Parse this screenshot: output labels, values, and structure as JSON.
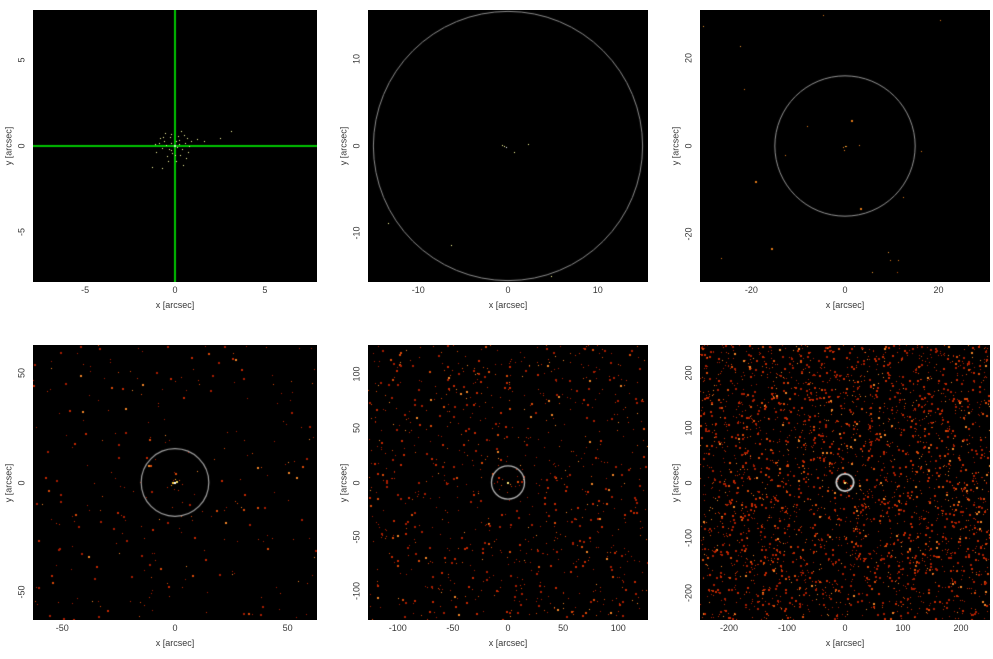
{
  "figure": {
    "description_colors": {
      "plot_background": "#000000",
      "page_background": "#ffffff",
      "tick_text": "#383838",
      "crosshair_green": "#00c400",
      "circle_gray": "#a8a8a8",
      "noise_red": "#b22000",
      "source_yellow": "#ffff9c"
    }
  },
  "chart_data": [
    {
      "type": "scatter",
      "xlabel": "x [arcsec]",
      "ylabel": "y [arcsec]",
      "xlim": [
        -7.9,
        7.9
      ],
      "ylim": [
        -7.9,
        7.9
      ],
      "xticks": [
        -5,
        0,
        5
      ],
      "yticks": [
        -5,
        0,
        5
      ],
      "bg": "#000000",
      "crosshair": {
        "color": "#00c400",
        "width": 2
      },
      "circle": null,
      "noise": null,
      "point_color": "#ffffa4",
      "point_size": 1,
      "points": [
        [
          -0.05,
          0.02
        ],
        [
          0.1,
          -0.08
        ],
        [
          -0.2,
          0.15
        ],
        [
          0.25,
          0.1
        ],
        [
          -0.35,
          -0.2
        ],
        [
          0.05,
          0.3
        ],
        [
          -0.5,
          0.05
        ],
        [
          0.4,
          -0.15
        ],
        [
          -0.15,
          -0.4
        ],
        [
          0.2,
          0.35
        ],
        [
          -0.6,
          0.3
        ],
        [
          0.55,
          0.2
        ],
        [
          -0.3,
          0.5
        ],
        [
          0,
          -0.55
        ],
        [
          -0.75,
          -0.1
        ],
        [
          0.65,
          0.45
        ],
        [
          -0.45,
          -0.6
        ],
        [
          0.3,
          -0.5
        ],
        [
          -0.9,
          0.2
        ],
        [
          0.8,
          0
        ],
        [
          -0.2,
          0.7
        ],
        [
          0.15,
          0.6
        ],
        [
          -1.05,
          -0.35
        ],
        [
          0.5,
          0.65
        ],
        [
          -0.65,
          0.55
        ],
        [
          0.9,
          0.3
        ],
        [
          -0.4,
          -0.85
        ],
        [
          0.05,
          -0.9
        ],
        [
          -1.3,
          -1.2
        ],
        [
          0.7,
          -0.35
        ],
        [
          -0.85,
          0.45
        ],
        [
          1.2,
          0.4
        ],
        [
          -1.1,
          0.1
        ],
        [
          0.35,
          0.85
        ],
        [
          1.6,
          0.3
        ],
        [
          2.5,
          0.45
        ],
        [
          3.1,
          0.85
        ],
        [
          -0.7,
          -1.3
        ],
        [
          0.45,
          -1.1
        ],
        [
          -0.25,
          -0.25
        ],
        [
          0.6,
          -0.7
        ],
        [
          -0.55,
          0.75
        ]
      ],
      "core": [
        [
          0,
          0,
          "#c0ffc0",
          2
        ]
      ]
    },
    {
      "type": "scatter",
      "xlabel": "x [arcsec]",
      "ylabel": "y [arcsec]",
      "xlim": [
        -15.6,
        15.6
      ],
      "ylim": [
        -15.6,
        15.6
      ],
      "xticks": [
        -10,
        0,
        10
      ],
      "yticks": [
        -10,
        0,
        10
      ],
      "bg": "#000000",
      "crosshair": null,
      "circle": {
        "radius": 15,
        "color": "#8c8c8c",
        "width": 1
      },
      "noise": null,
      "point_color": "#ffff9c",
      "point_size": 1,
      "points": [
        [
          -0.7,
          0.1
        ],
        [
          -0.45,
          0.05
        ],
        [
          -0.25,
          -0.1,
          "#ffffff"
        ],
        [
          0.65,
          -0.65
        ],
        [
          2.2,
          0.2
        ],
        [
          -13.4,
          -8.8
        ],
        [
          -6.3,
          -11.3
        ],
        [
          4.8,
          -14.9
        ]
      ],
      "core": []
    },
    {
      "type": "scatter",
      "xlabel": "x [arcsec]",
      "ylabel": "y [arcsec]",
      "xlim": [
        -31,
        31
      ],
      "ylim": [
        -31,
        31
      ],
      "xticks": [
        -20,
        0,
        20
      ],
      "yticks": [
        -20,
        0,
        20
      ],
      "bg": "#000000",
      "crosshair": null,
      "circle": {
        "radius": 15,
        "color": "#949494",
        "width": 1
      },
      "noise": {
        "n": 19,
        "seed": 7,
        "big_fraction": 0.3,
        "palette": [
          [
            "#e07818",
            0.6
          ],
          [
            "#c05008",
            0.25
          ],
          [
            "#f09830",
            0.15
          ]
        ]
      },
      "point_color": "#f08020",
      "point_size": 1,
      "points": [
        [
          -0.5,
          -0.3
        ],
        [
          -0.2,
          -0.9
        ],
        [
          0.2,
          0.1
        ],
        [
          2.9,
          0.3
        ]
      ],
      "core": [
        [
          0,
          0,
          "#ffc040",
          1
        ]
      ]
    },
    {
      "type": "scatter",
      "xlabel": "x [arcsec]",
      "ylabel": "y [arcsec]",
      "xlim": [
        -63,
        63
      ],
      "ylim": [
        -63,
        63
      ],
      "xticks": [
        -50,
        0,
        50
      ],
      "yticks": [
        -50,
        0,
        50
      ],
      "bg": "#000000",
      "crosshair": null,
      "circle": {
        "radius": 15,
        "color": "#a0a0a0",
        "width": 1.2
      },
      "noise": {
        "n": 290,
        "seed": 11,
        "big_fraction": 0.3,
        "palette": [
          [
            "#a81c00",
            0.45
          ],
          [
            "#c42800",
            0.3
          ],
          [
            "#d84808",
            0.15
          ],
          [
            "#f08428",
            0.1
          ]
        ]
      },
      "point_color": "#c42800",
      "point_size": 1,
      "points": [],
      "core": [
        [
          0,
          0,
          "#ffffff",
          2
        ],
        [
          0.8,
          0.4,
          "#ffe060",
          2
        ],
        [
          -0.8,
          -0.4,
          "#ffc838",
          2
        ],
        [
          -1.8,
          -1.1,
          "#ff9010",
          1
        ],
        [
          1.8,
          1,
          "#d84808",
          1
        ],
        [
          0.2,
          1.5,
          "#ffb028",
          1
        ],
        [
          -3.5,
          -2,
          "#c42800",
          1
        ],
        [
          3.2,
          -0.6,
          "#c42800",
          1
        ]
      ]
    },
    {
      "type": "scatter",
      "xlabel": "x [arcsec]",
      "ylabel": "y [arcsec]",
      "xlim": [
        -127,
        127
      ],
      "ylim": [
        -127,
        127
      ],
      "xticks": [
        -100,
        -50,
        0,
        50,
        100
      ],
      "yticks": [
        -100,
        -50,
        0,
        50,
        100
      ],
      "bg": "#000000",
      "crosshair": null,
      "circle": {
        "radius": 15,
        "color": "#b4b4b4",
        "width": 1.3
      },
      "noise": {
        "n": 950,
        "seed": 13,
        "big_fraction": 0.3,
        "palette": [
          [
            "#a81c00",
            0.45
          ],
          [
            "#c42800",
            0.3
          ],
          [
            "#d84808",
            0.15
          ],
          [
            "#f08428",
            0.1
          ]
        ]
      },
      "point_color": "#c42800",
      "point_size": 1,
      "points": [],
      "core": [
        [
          0,
          0,
          "#ffe878",
          2
        ],
        [
          2,
          -1,
          "#e07018",
          1
        ]
      ]
    },
    {
      "type": "scatter",
      "xlabel": "x [arcsec]",
      "ylabel": "y [arcsec]",
      "xlim": [
        -250,
        250
      ],
      "ylim": [
        -250,
        250
      ],
      "xticks": [
        -200,
        -100,
        0,
        100,
        200
      ],
      "yticks": [
        -200,
        -100,
        0,
        100,
        200
      ],
      "bg": "#000000",
      "crosshair": null,
      "circle": {
        "radius": 15,
        "color": "#d0d0d0",
        "width": 1.8
      },
      "noise": {
        "n": 3000,
        "seed": 21,
        "big_fraction": 0.35,
        "palette": [
          [
            "#a81c00",
            0.45
          ],
          [
            "#c42800",
            0.3
          ],
          [
            "#d84808",
            0.15
          ],
          [
            "#f08428",
            0.1
          ]
        ]
      },
      "point_color": "#c42800",
      "point_size": 1,
      "points": [],
      "core": [
        [
          0,
          0,
          "#ffe878",
          2
        ]
      ]
    }
  ]
}
